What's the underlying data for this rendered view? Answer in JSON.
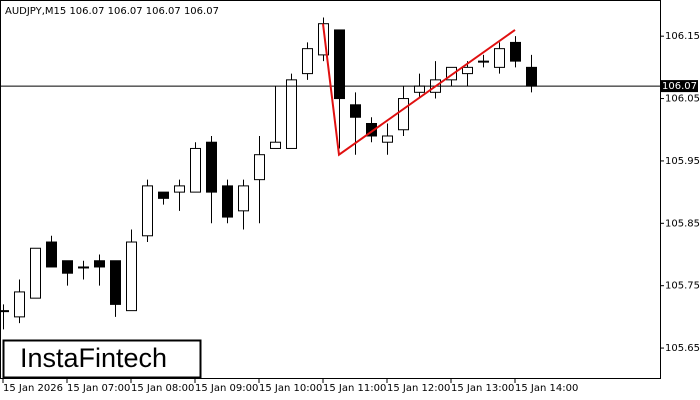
{
  "chart_data": {
    "type": "candlestick",
    "title": "AUDJPY,M15  106.07 106.07 106.07 106.07",
    "logo": "InstaFintech",
    "categories": [
      "15 Jan 2026",
      null,
      null,
      null,
      "15 Jan 07:00",
      null,
      null,
      null,
      "15 Jan 08:00",
      null,
      null,
      null,
      "15 Jan 09:00",
      null,
      null,
      null,
      "15 Jan 10:00",
      null,
      null,
      null,
      "15 Jan 11:00",
      null,
      null,
      null,
      "15 Jan 12:00",
      null,
      null,
      null,
      "15 Jan 13:00",
      null,
      null,
      null,
      "15 Jan 14:00",
      null
    ],
    "open": [
      105.71,
      105.7,
      105.73,
      105.82,
      105.79,
      105.78,
      105.79,
      105.79,
      105.71,
      105.83,
      105.9,
      105.9,
      105.9,
      105.98,
      105.91,
      105.87,
      105.92,
      105.97,
      105.97,
      106.09,
      106.12,
      106.16,
      106.04,
      106.01,
      105.98,
      106.0,
      106.06,
      106.06,
      106.08,
      106.09,
      106.11,
      106.1,
      106.14,
      106.1
    ],
    "high": [
      105.72,
      105.76,
      105.81,
      105.83,
      105.79,
      105.79,
      105.8,
      105.79,
      105.84,
      105.92,
      105.9,
      105.92,
      105.98,
      105.99,
      105.92,
      105.92,
      105.99,
      106.07,
      106.09,
      106.14,
      106.18,
      106.16,
      106.06,
      106.02,
      106.01,
      106.07,
      106.09,
      106.11,
      106.1,
      106.11,
      106.12,
      106.14,
      106.15,
      106.12
    ],
    "low": [
      105.68,
      105.69,
      105.73,
      105.78,
      105.75,
      105.76,
      105.75,
      105.7,
      105.71,
      105.82,
      105.88,
      105.87,
      105.9,
      105.85,
      105.85,
      105.84,
      105.85,
      105.97,
      105.97,
      106.08,
      106.11,
      105.97,
      105.96,
      105.98,
      105.96,
      105.99,
      106.05,
      106.05,
      106.07,
      106.07,
      106.1,
      106.09,
      106.1,
      106.06
    ],
    "close": [
      105.71,
      105.74,
      105.81,
      105.78,
      105.77,
      105.78,
      105.78,
      105.72,
      105.82,
      105.91,
      105.89,
      105.91,
      105.97,
      105.9,
      105.86,
      105.91,
      105.96,
      105.98,
      106.08,
      106.13,
      106.17,
      106.05,
      106.02,
      105.99,
      105.99,
      106.05,
      106.07,
      106.08,
      106.1,
      106.1,
      106.11,
      106.13,
      106.11,
      106.07
    ],
    "current_price": 106.07,
    "pattern": {
      "color": "#e01010",
      "x": [
        20,
        21,
        32
      ],
      "values": [
        106.17,
        105.96,
        106.16
      ]
    },
    "ylim": [
      105.602,
      106.208
    ],
    "yticks": [
      106.15,
      106.05,
      105.95,
      105.85,
      105.75,
      105.65
    ]
  }
}
